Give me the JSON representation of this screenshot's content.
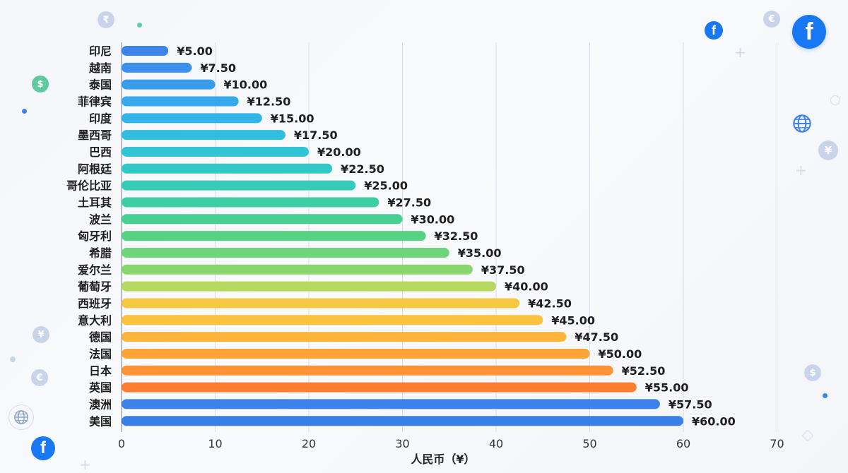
{
  "chart_data": {
    "type": "bar",
    "orientation": "horizontal",
    "categories": [
      "印尼",
      "越南",
      "泰国",
      "菲律宾",
      "印度",
      "墨西哥",
      "巴西",
      "阿根廷",
      "哥伦比亚",
      "土耳其",
      "波兰",
      "匈牙利",
      "希腊",
      "爱尔兰",
      "葡萄牙",
      "西班牙",
      "意大利",
      "德国",
      "法国",
      "日本",
      "英国",
      "澳洲",
      "美国"
    ],
    "values": [
      5,
      7.5,
      10,
      12.5,
      15,
      17.5,
      20,
      22.5,
      25,
      27.5,
      30,
      32.5,
      35,
      37.5,
      40,
      42.5,
      45,
      47.5,
      50,
      52.5,
      55,
      57.5,
      60
    ],
    "value_labels": [
      "¥5.00",
      "¥7.50",
      "¥10.00",
      "¥12.50",
      "¥15.00",
      "¥17.50",
      "¥20.00",
      "¥22.50",
      "¥25.00",
      "¥27.50",
      "¥30.00",
      "¥32.50",
      "¥35.00",
      "¥37.50",
      "¥40.00",
      "¥42.50",
      "¥45.00",
      "¥47.50",
      "¥50.00",
      "¥52.50",
      "¥55.00",
      "¥57.50",
      "¥60.00"
    ],
    "bar_colors": [
      "#3d83ea",
      "#3a90eb",
      "#389ceb",
      "#36a8eb",
      "#33b4e7",
      "#30bddf",
      "#30c4d4",
      "#32c8c6",
      "#36cbb6",
      "#3dcea4",
      "#47d092",
      "#56d285",
      "#6fd47a",
      "#8ad56c",
      "#b5d95e",
      "#f5c842",
      "#fbc23e",
      "#fdb43a",
      "#fea437",
      "#fe9234",
      "#fe7e31",
      "#3d82ea",
      "#3a7fe8"
    ],
    "xlim": [
      0,
      70
    ],
    "xticks": [
      0,
      10,
      20,
      30,
      40,
      50,
      60,
      70
    ],
    "xlabel": "人民币（¥）",
    "grid": "vertical"
  },
  "decor": {
    "fb_glyph": "f",
    "coin_glyphs": {
      "rupee": "₹",
      "dollar": "$",
      "yen": "¥",
      "euro": "€"
    },
    "globe_icon": "globe-icon",
    "facebook_icon": "facebook-icon"
  }
}
